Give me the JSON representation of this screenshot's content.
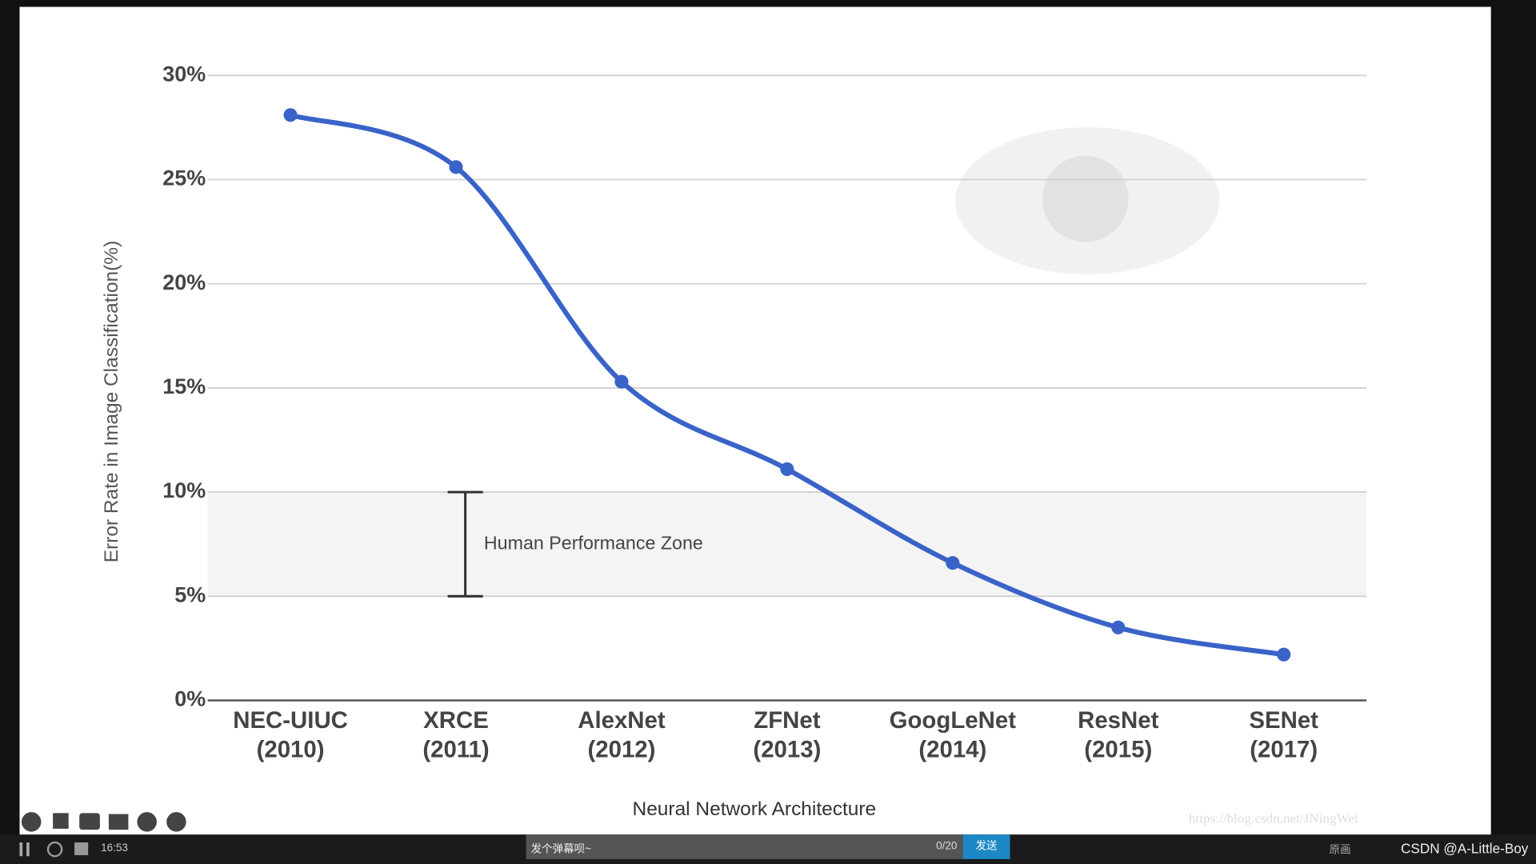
{
  "chart_data": {
    "type": "line",
    "y_label": "Error Rate in Image Classification(%)",
    "x_label": "Neural Network Architecture",
    "categories": [
      "NEC-UIUC\n(2010)",
      "XRCE\n(2011)",
      "AlexNet\n(2012)",
      "ZFNet\n(2013)",
      "GoogLeNet\n(2014)",
      "ResNet\n(2015)",
      "SENet\n(2017)"
    ],
    "values": [
      28.1,
      25.6,
      15.3,
      11.1,
      6.6,
      3.5,
      2.2
    ],
    "color": "#3a63c8",
    "ylim": [
      0,
      30
    ],
    "yticks": [
      {
        "value": 0,
        "label": "0%"
      },
      {
        "value": 5,
        "label": "5%"
      },
      {
        "value": 10,
        "label": "10%"
      },
      {
        "value": 15,
        "label": "15%"
      },
      {
        "value": 20,
        "label": "20%"
      },
      {
        "value": 25,
        "label": "25%"
      },
      {
        "value": 30,
        "label": "30%"
      }
    ],
    "grid": true,
    "zone": {
      "label": "Human Performance Zone",
      "range": [
        5,
        10
      ]
    }
  },
  "ui": {
    "watermark": "https://blog.csdn.net/JNingWei",
    "time": "16:53",
    "danmaku_placeholder": "发个弹幕呗~",
    "char_count": "0/20",
    "send": "发送",
    "quality": "原画",
    "credit": "CSDN @A-Little-Boy"
  }
}
